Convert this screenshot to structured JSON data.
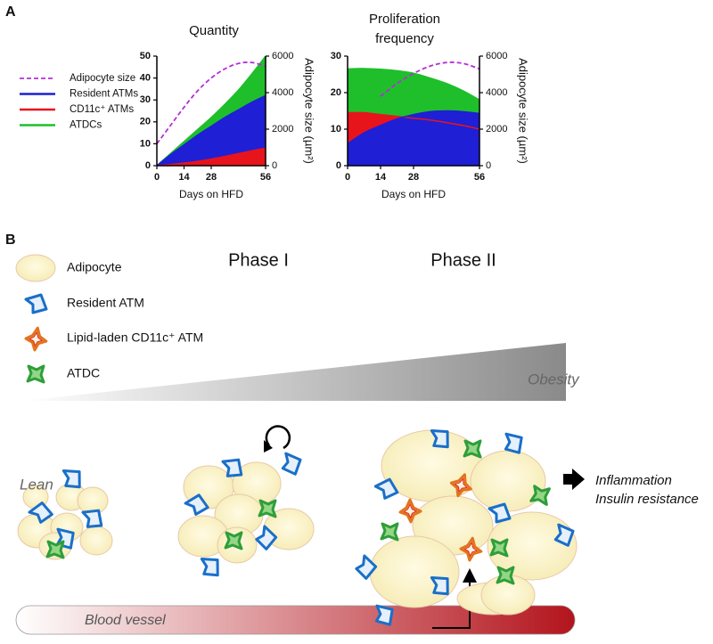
{
  "panel_labels": [
    "A",
    "B"
  ],
  "chart_data": [
    {
      "type": "area",
      "title": "Quantity",
      "xlabel": "Days on HFD",
      "y2label": "Adipocyte size (µm²)",
      "x": [
        0,
        7,
        14,
        21,
        28,
        35,
        42,
        49,
        56
      ],
      "xlim": [
        0,
        56
      ],
      "xticks": [
        0,
        14,
        28,
        56
      ],
      "ylim": [
        0,
        50
      ],
      "yticks": [
        0,
        10,
        20,
        30,
        40,
        50
      ],
      "y2lim": [
        0,
        6000
      ],
      "y2ticks": [
        0,
        2000,
        4000,
        6000
      ],
      "series": [
        {
          "name": "Adipocyte size",
          "color": "#b42fd8",
          "style": "dashed",
          "axis": "y2",
          "values": [
            1200,
            2200,
            3200,
            4100,
            4800,
            5300,
            5600,
            5650,
            5450
          ]
        },
        {
          "name": "Resident ATMs",
          "color": "#1f1fd6",
          "values": [
            0,
            5,
            9.5,
            14,
            18,
            22,
            25.5,
            29,
            32
          ]
        },
        {
          "name": "CD11c⁺ ATMs",
          "color": "#e8141c",
          "values": [
            0,
            0.5,
            1.2,
            2,
            3,
            4.2,
            5.5,
            6.8,
            8
          ]
        },
        {
          "name": "ATDCs",
          "color": "#1fbf2c",
          "values": [
            0,
            5.5,
            11,
            16.5,
            22,
            28,
            34.5,
            42,
            50
          ]
        }
      ]
    },
    {
      "type": "area",
      "title": "Proliferation frequency",
      "xlabel": "Days on HFD",
      "y2label": "Adipocyte size (µm²)",
      "x": [
        0,
        7,
        14,
        21,
        28,
        35,
        42,
        49,
        56
      ],
      "xlim": [
        0,
        56
      ],
      "xticks": [
        0,
        14,
        28,
        56
      ],
      "ylim": [
        0,
        30
      ],
      "yticks": [
        0,
        10,
        20,
        30
      ],
      "y2lim": [
        0,
        6000
      ],
      "y2ticks": [
        0,
        2000,
        4000,
        6000
      ],
      "series": [
        {
          "color": "#b42fd8",
          "style": "dashed",
          "axis": "y2",
          "values": [
            null,
            null,
            3800,
            4500,
            5050,
            5450,
            5650,
            5600,
            5300
          ]
        },
        {
          "color": "#1f1fd6",
          "values": [
            6,
            9,
            11,
            12.8,
            14,
            14.8,
            15,
            14.8,
            14.3
          ]
        },
        {
          "color": "#e8141c",
          "values": [
            14.5,
            14.5,
            14,
            13.5,
            13,
            12.5,
            11.8,
            11,
            10
          ]
        },
        {
          "color": "#1fbf2c",
          "values": [
            26.5,
            26.6,
            26.4,
            26,
            25.3,
            24,
            22.5,
            20.5,
            18
          ]
        }
      ]
    }
  ],
  "diagram": {
    "legend": [
      "Adipocyte",
      "Resident ATM",
      "Lipid-laden CD11c⁺ ATM",
      "ATDC"
    ],
    "phases": [
      "Phase I",
      "Phase II"
    ],
    "gradient_label": "Obesity",
    "lean_label": "Lean",
    "outcomes": [
      "Inflammation",
      "Insulin resistance"
    ],
    "vessel_label": "Blood vessel"
  }
}
